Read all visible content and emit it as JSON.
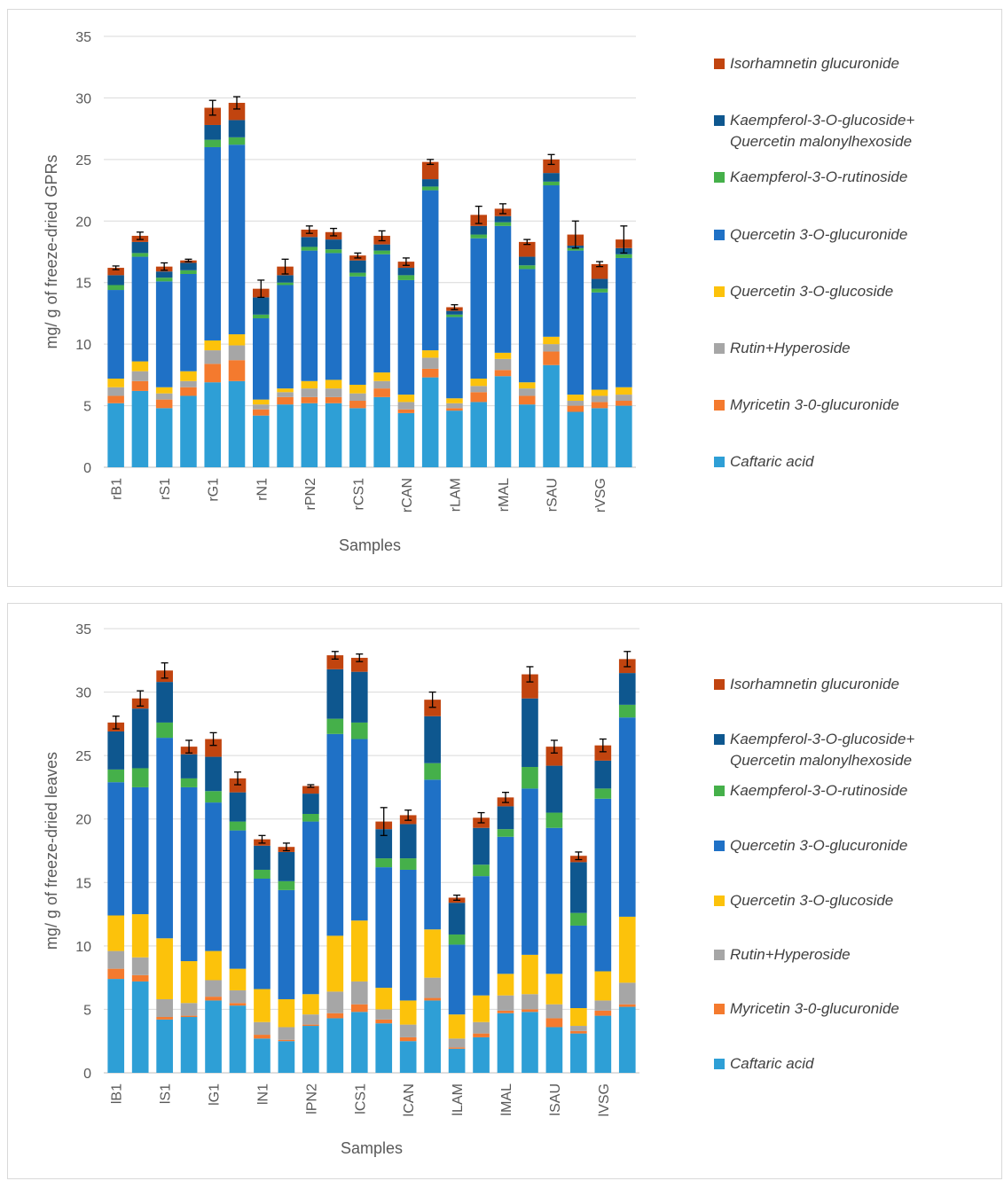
{
  "colors": {
    "Caftaric acid": "#2e9fd6",
    "Myricetin 3-0-glucuronide": "#f47a2e",
    "Rutin+Hyperoside": "#a6a6a6",
    "Quercetin 3-O-glucoside": "#fcc20b",
    "Quercetin 3-O-glucuronide": "#1f71c6",
    "Kaempferol-3-O-rutinoside": "#45b04a",
    "Kaempferol-3-O-glucoside+ Quercetin malonylhexoside": "#0e578f",
    "Isorhamnetin glucuronide": "#c1440f",
    "grid": "#d9d9d9",
    "axis": "#bfbfbf",
    "text": "#595959"
  },
  "chart_data": [
    {
      "type": "bar",
      "stacked": true,
      "xlabel": "Samples",
      "ylabel": "mg/ g of freeze-dried GPRs",
      "ylim": [
        0,
        35
      ],
      "yticks": [
        0,
        5,
        10,
        15,
        20,
        25,
        30,
        35
      ],
      "grid": true,
      "legend_position": "right",
      "legend_order": [
        "Isorhamnetin glucuronide",
        "Kaempferol-3-O-glucoside+ Quercetin malonylhexoside",
        "Kaempferol-3-O-rutinoside",
        "Quercetin 3-O-glucuronide",
        "Quercetin 3-O-glucoside",
        "Rutin+Hyperoside",
        "Myricetin 3-0-glucuronide",
        "Caftaric acid"
      ],
      "categories": [
        "rB1",
        "",
        "rS1",
        "",
        "rG1",
        "",
        "rN1",
        "",
        "rPN2",
        "",
        "rCS1",
        "",
        "rCAN",
        "",
        "rLAM",
        "",
        "rMAL",
        "",
        "rSAU",
        "",
        "rVSG",
        ""
      ],
      "series": [
        {
          "name": "Caftaric acid",
          "values": [
            5.2,
            6.2,
            4.8,
            5.8,
            6.9,
            7.0,
            4.2,
            5.1,
            5.2,
            5.2,
            4.8,
            5.7,
            4.4,
            7.3,
            4.6,
            5.3,
            7.4,
            5.1,
            8.3,
            4.5,
            4.8,
            5.0
          ]
        },
        {
          "name": "Myricetin 3-0-glucuronide",
          "values": [
            0.6,
            0.8,
            0.7,
            0.7,
            1.5,
            1.7,
            0.5,
            0.6,
            0.5,
            0.5,
            0.6,
            0.7,
            0.3,
            0.7,
            0.2,
            0.8,
            0.5,
            0.7,
            1.1,
            0.5,
            0.5,
            0.4
          ]
        },
        {
          "name": "Rutin+Hyperoside",
          "values": [
            0.7,
            0.8,
            0.5,
            0.5,
            1.1,
            1.2,
            0.4,
            0.4,
            0.7,
            0.7,
            0.6,
            0.6,
            0.6,
            0.9,
            0.4,
            0.5,
            0.9,
            0.6,
            0.6,
            0.4,
            0.5,
            0.5
          ]
        },
        {
          "name": "Quercetin 3-O-glucoside",
          "values": [
            0.7,
            0.8,
            0.5,
            0.8,
            0.8,
            0.9,
            0.4,
            0.3,
            0.6,
            0.7,
            0.7,
            0.7,
            0.6,
            0.6,
            0.4,
            0.6,
            0.5,
            0.5,
            0.6,
            0.5,
            0.5,
            0.6
          ]
        },
        {
          "name": "Quercetin 3-O-glucuronide",
          "values": [
            7.2,
            8.5,
            8.6,
            7.9,
            15.7,
            15.4,
            6.6,
            8.4,
            10.6,
            10.3,
            8.8,
            9.6,
            9.3,
            13.0,
            6.6,
            11.4,
            10.3,
            9.2,
            12.3,
            11.7,
            7.9,
            10.5
          ]
        },
        {
          "name": "Kaempferol-3-O-rutinoside",
          "values": [
            0.4,
            0.3,
            0.3,
            0.3,
            0.6,
            0.6,
            0.3,
            0.2,
            0.3,
            0.3,
            0.3,
            0.3,
            0.4,
            0.3,
            0.2,
            0.3,
            0.3,
            0.3,
            0.3,
            0.2,
            0.3,
            0.3
          ]
        },
        {
          "name": "Kaempferol-3-O-glucoside+ Quercetin malonylhexoside",
          "values": [
            0.8,
            0.9,
            0.5,
            0.6,
            1.2,
            1.4,
            1.4,
            0.6,
            0.8,
            0.8,
            1.0,
            0.5,
            0.6,
            0.6,
            0.3,
            0.7,
            0.5,
            0.7,
            0.7,
            0.2,
            0.8,
            0.5
          ]
        },
        {
          "name": "Isorhamnetin glucuronide",
          "values": [
            0.6,
            0.5,
            0.4,
            0.2,
            1.4,
            1.4,
            0.7,
            0.7,
            0.6,
            0.6,
            0.4,
            0.7,
            0.5,
            1.4,
            0.3,
            0.9,
            0.6,
            1.2,
            1.1,
            0.9,
            1.2,
            0.7
          ]
        }
      ],
      "error_bars": [
        0.15,
        0.3,
        0.3,
        0.1,
        0.6,
        0.5,
        0.7,
        0.6,
        0.3,
        0.3,
        0.2,
        0.4,
        0.3,
        0.2,
        0.2,
        0.7,
        0.4,
        0.2,
        0.4,
        1.1,
        0.2,
        1.1
      ]
    },
    {
      "type": "bar",
      "stacked": true,
      "xlabel": "Samples",
      "ylabel": "mg/ g of freeze-dried leaves",
      "ylim": [
        0,
        35
      ],
      "yticks": [
        0,
        5,
        10,
        15,
        20,
        25,
        30,
        35
      ],
      "grid": true,
      "legend_position": "right",
      "legend_order": [
        "Isorhamnetin glucuronide",
        "Kaempferol-3-O-glucoside+ Quercetin malonylhexoside",
        "Kaempferol-3-O-rutinoside",
        "Quercetin 3-O-glucuronide",
        "Quercetin 3-O-glucoside",
        "Rutin+Hyperoside",
        "Myricetin 3-0-glucuronide",
        "Caftaric acid"
      ],
      "categories": [
        "lB1",
        "",
        "lS1",
        "",
        "lG1",
        "",
        "lN1",
        "",
        "lPN2",
        "",
        "lCS1",
        "",
        "lCAN",
        "",
        "lLAM",
        "",
        "lMAL",
        "",
        "lSAU",
        "",
        "lVSG",
        ""
      ],
      "series": [
        {
          "name": "Caftaric acid",
          "values": [
            7.4,
            7.2,
            4.2,
            4.4,
            5.7,
            5.3,
            2.7,
            2.5,
            3.7,
            4.3,
            4.8,
            3.9,
            2.5,
            5.7,
            1.9,
            2.8,
            4.7,
            4.8,
            3.6,
            3.1,
            4.5,
            5.2
          ]
        },
        {
          "name": "Myricetin 3-0-glucuronide",
          "values": [
            0.8,
            0.5,
            0.2,
            0.1,
            0.3,
            0.2,
            0.3,
            0.1,
            0.1,
            0.4,
            0.6,
            0.3,
            0.3,
            0.2,
            0.1,
            0.3,
            0.2,
            0.2,
            0.7,
            0.2,
            0.4,
            0.2
          ]
        },
        {
          "name": "Rutin+Hyperoside",
          "values": [
            1.4,
            1.4,
            1.4,
            1.0,
            1.3,
            1.0,
            1.0,
            1.0,
            0.8,
            1.7,
            1.8,
            0.8,
            1.0,
            1.6,
            0.7,
            0.9,
            1.2,
            1.2,
            1.1,
            0.4,
            0.8,
            1.7
          ]
        },
        {
          "name": "Quercetin 3-O-glucoside",
          "values": [
            2.8,
            3.4,
            4.8,
            3.3,
            2.3,
            1.7,
            2.6,
            2.2,
            1.6,
            4.4,
            4.8,
            1.7,
            1.9,
            3.8,
            1.9,
            2.1,
            1.7,
            3.1,
            2.4,
            1.4,
            2.3,
            5.2
          ]
        },
        {
          "name": "Quercetin 3-O-glucuronide",
          "values": [
            10.5,
            10.0,
            15.8,
            13.7,
            11.7,
            10.9,
            8.7,
            8.6,
            13.6,
            15.9,
            14.3,
            9.5,
            10.3,
            11.8,
            5.5,
            9.4,
            10.8,
            13.1,
            11.5,
            6.5,
            13.6,
            15.7
          ]
        },
        {
          "name": "Kaempferol-3-O-rutinoside",
          "values": [
            1.0,
            1.5,
            1.2,
            0.7,
            0.9,
            0.7,
            0.7,
            0.7,
            0.6,
            1.2,
            1.3,
            0.7,
            0.9,
            1.3,
            0.8,
            0.9,
            0.6,
            1.7,
            1.2,
            1.0,
            0.8,
            1.0
          ]
        },
        {
          "name": "Kaempferol-3-O-glucoside+ Quercetin malonylhexoside",
          "values": [
            3.0,
            4.7,
            3.2,
            1.9,
            2.7,
            2.3,
            1.9,
            2.3,
            1.6,
            3.9,
            4.0,
            2.3,
            2.7,
            3.7,
            2.5,
            2.9,
            1.8,
            5.4,
            3.7,
            4.0,
            2.2,
            2.5
          ]
        },
        {
          "name": "Isorhamnetin glucuronide",
          "values": [
            0.7,
            0.8,
            0.9,
            0.6,
            1.4,
            1.1,
            0.5,
            0.4,
            0.6,
            1.1,
            1.1,
            0.6,
            0.7,
            1.3,
            0.4,
            0.8,
            0.7,
            1.9,
            1.5,
            0.5,
            1.2,
            1.1
          ]
        }
      ],
      "error_bars": [
        0.5,
        0.6,
        0.6,
        0.5,
        0.5,
        0.5,
        0.3,
        0.3,
        0.1,
        0.3,
        0.3,
        1.1,
        0.4,
        0.6,
        0.2,
        0.4,
        0.4,
        0.6,
        0.5,
        0.3,
        0.5,
        0.6
      ]
    }
  ]
}
